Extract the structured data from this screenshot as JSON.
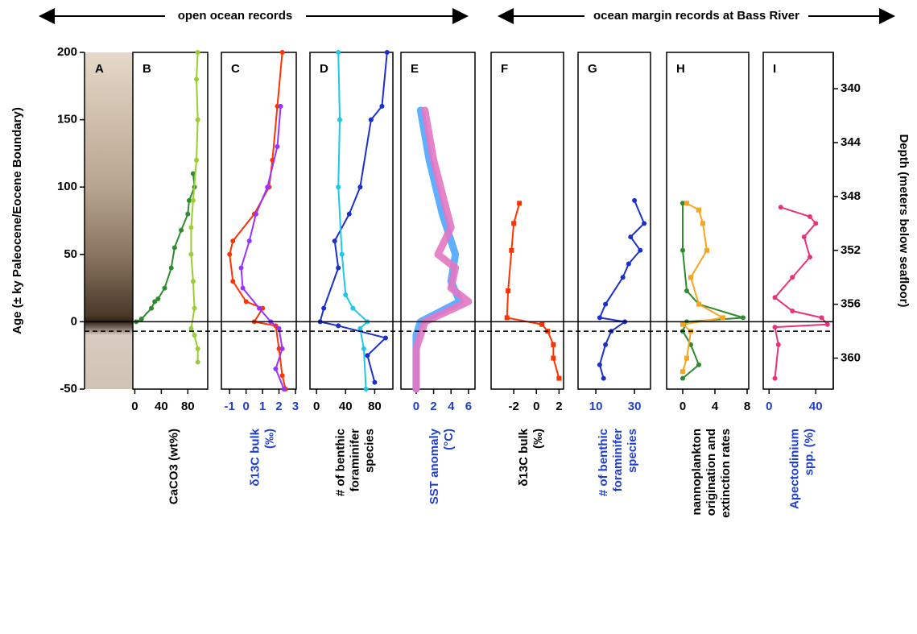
{
  "chart_data": {
    "type": "line",
    "header_left": "open ocean records",
    "header_right": "ocean margin records at Bass River",
    "ylabel": "Age (± ky Paleocene/Eocene Boundary)",
    "y2label": "Depth (meters below seafloor)",
    "ylim": [
      -50,
      200
    ],
    "yticks": [
      -50,
      0,
      50,
      100,
      150,
      200
    ],
    "y2lim": [
      337.3,
      362.3
    ],
    "y2ticks": [
      340,
      344,
      348,
      352,
      356,
      360
    ],
    "core_label": "A",
    "boundary_lines": [
      {
        "value": 0,
        "style": "solid"
      },
      {
        "value": -7,
        "style": "dashed"
      }
    ],
    "panels": [
      {
        "label": "B",
        "xlim": [
          -3,
          110
        ],
        "xticks": [
          0,
          40,
          80
        ],
        "axis_color": "#000000",
        "xlabel": [
          "CaCO3 (wt%)"
        ],
        "series": [
          {
            "color": "#2e8b2e",
            "marker": "circle",
            "x": [
              2,
              10,
              25,
              30,
              35,
              45,
              55,
              60,
              70,
              80,
              82,
              90,
              88
            ],
            "values": [
              0,
              2,
              10,
              15,
              17,
              25,
              40,
              55,
              68,
              80,
              90,
              100,
              110
            ]
          },
          {
            "color": "#9acd32",
            "marker": "circle",
            "x": [
              95,
              93,
              95,
              93,
              88,
              85,
              85,
              88,
              90,
              85,
              90,
              95,
              95
            ],
            "values": [
              200,
              180,
              150,
              120,
              90,
              70,
              50,
              30,
              10,
              -5,
              -10,
              -20,
              -30
            ]
          }
        ]
      },
      {
        "label": "C",
        "xlim": [
          -1.5,
          3.05
        ],
        "xticks": [
          -1,
          0,
          1,
          2,
          3
        ],
        "axis_color": "#1f3fcc",
        "xlabel": [
          "δ13C bulk",
          "(‰)"
        ],
        "series": [
          {
            "color": "#ff3300",
            "marker": "circle",
            "x": [
              2.2,
              1.9,
              1.6,
              1.4,
              0.5,
              -0.8,
              -1,
              -0.8,
              0,
              1,
              0.5,
              1.8,
              2,
              2.2,
              2.4
            ],
            "values": [
              200,
              160,
              120,
              100,
              80,
              60,
              50,
              30,
              15,
              10,
              0,
              -3,
              -20,
              -40,
              -50
            ]
          },
          {
            "color": "#9933ff",
            "marker": "circle",
            "x": [
              2.1,
              1.9,
              1.3,
              0.6,
              0.2,
              -0.3,
              -0.2,
              0.8,
              1.5,
              2,
              2.2,
              1.8,
              2.3
            ],
            "values": [
              160,
              130,
              100,
              80,
              60,
              40,
              25,
              10,
              0,
              -5,
              -20,
              -35,
              -50
            ]
          }
        ]
      },
      {
        "label": "D",
        "xlim": [
          -9,
          105
        ],
        "xticks": [
          0,
          40,
          80
        ],
        "axis_color": "#000000",
        "xlabel": [
          "# of benthic",
          "foraminifer",
          "species"
        ],
        "series": [
          {
            "color": "#1a2fcc",
            "marker": "circle",
            "x": [
              97,
              90,
              75,
              60,
              45,
              25,
              30,
              10,
              5,
              30,
              95,
              70,
              80
            ],
            "values": [
              200,
              160,
              150,
              100,
              80,
              60,
              40,
              10,
              0,
              -3,
              -12,
              -25,
              -45
            ]
          },
          {
            "color": "#1ec8e6",
            "marker": "circle",
            "x": [
              30,
              32,
              30,
              35,
              40,
              50,
              70,
              60,
              65,
              68
            ],
            "values": [
              200,
              150,
              100,
              50,
              20,
              10,
              0,
              -5,
              -20,
              -50
            ]
          }
        ]
      },
      {
        "label": "E",
        "xlim": [
          -1.75,
          6.75
        ],
        "xticks": [
          0,
          2,
          4,
          6
        ],
        "axis_color": "#1f3fcc",
        "xlabel": [
          "SST anomaly",
          "(°C)"
        ],
        "series": [
          {
            "color": "#4da6ff",
            "marker": "band",
            "x": [
              0.5,
              1.5,
              3,
              4.5,
              4,
              5,
              0.5,
              0,
              0
            ],
            "values": [
              157,
              120,
              80,
              50,
              30,
              15,
              0,
              -10,
              -50
            ]
          },
          {
            "color": "#e377c2",
            "marker": "band",
            "x": [
              1,
              2,
              4,
              2.5,
              4.5,
              4,
              6,
              1,
              0,
              0
            ],
            "values": [
              157,
              120,
              70,
              50,
              40,
              25,
              15,
              0,
              -20,
              -50
            ]
          }
        ]
      },
      {
        "label": "F",
        "xlim": [
          -4,
          2.4
        ],
        "xticks": [
          -2,
          0,
          2
        ],
        "axis_color": "#000000",
        "xlabel": [
          "δ13C bulk",
          "(‰)"
        ],
        "series": [
          {
            "color": "#ff3300",
            "marker": "square",
            "axis": "y2",
            "x": [
              -1.5,
              -2,
              -2.2,
              -2.5,
              -2.6,
              0.5,
              1,
              1.5,
              1.5,
              2
            ],
            "values": [
              348.5,
              350,
              352,
              355,
              357,
              357.5,
              358,
              359,
              360,
              361.5
            ]
          }
        ]
      },
      {
        "label": "G",
        "xlim": [
          0.8,
          38.3
        ],
        "xticks": [
          10,
          30
        ],
        "axis_color": "#1f3fcc",
        "xlabel": [
          "# of benthic",
          "foraminifer",
          "species"
        ],
        "series": [
          {
            "color": "#1a2fcc",
            "marker": "circle",
            "axis": "y2",
            "x": [
              30,
              35,
              28,
              33,
              27,
              24,
              15,
              12,
              25,
              18,
              15,
              12,
              14
            ],
            "values": [
              348.3,
              350,
              351,
              352,
              353,
              354,
              356,
              357,
              357.3,
              358,
              359,
              360.5,
              361.5
            ]
          }
        ]
      },
      {
        "label": "H",
        "xlim": [
          -2,
          8.2
        ],
        "xticks": [
          0,
          4,
          8
        ],
        "axis_color": "#000000",
        "xlabel": [
          "nannoplankton",
          "origination and",
          "extinction rates"
        ],
        "series": [
          {
            "color": "#2e8b2e",
            "marker": "circle",
            "axis": "y2",
            "x": [
              0,
              0,
              0.5,
              2,
              7.5,
              0.5,
              0,
              1,
              2,
              0
            ],
            "values": [
              348.5,
              352,
              355,
              356,
              357,
              357.3,
              358,
              359,
              360.5,
              361.5
            ]
          },
          {
            "color": "#f5a623",
            "marker": "square",
            "axis": "y2",
            "x": [
              0.5,
              2,
              2.5,
              3,
              1,
              2,
              5,
              0,
              1,
              0.5,
              0
            ],
            "values": [
              348.5,
              349,
              350,
              352,
              354,
              356,
              357,
              357.5,
              358,
              360,
              361
            ]
          }
        ]
      },
      {
        "label": "I",
        "xlim": [
          -5,
          55
        ],
        "xticks": [
          0,
          40
        ],
        "axis_color": "#1f3fcc",
        "xlabel": [
          "Apectodinium",
          "spp. (%)"
        ],
        "series": [
          {
            "color": "#e8337a",
            "marker": "circle",
            "axis": "y2",
            "x": [
              10,
              35,
              40,
              30,
              35,
              20,
              5,
              20,
              45,
              50,
              5,
              8,
              5
            ],
            "values": [
              348.8,
              349.5,
              350,
              351,
              352.5,
              354,
              355.5,
              356.5,
              357,
              357.5,
              357.7,
              359,
              361.5
            ]
          }
        ]
      }
    ]
  }
}
